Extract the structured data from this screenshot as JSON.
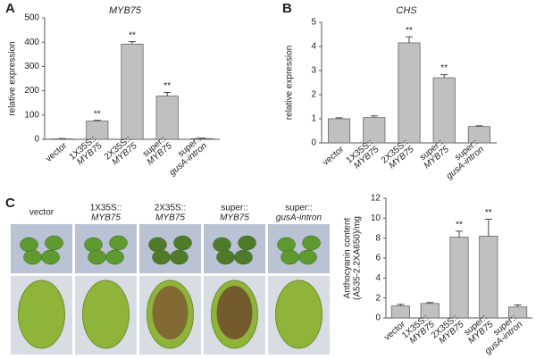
{
  "panels": [
    "A",
    "B",
    "C"
  ],
  "photo_panel": {
    "labels": [
      [
        "vector"
      ],
      [
        "1X35S::",
        "MYB75"
      ],
      [
        "2X35S::",
        "MYB75"
      ],
      [
        "super::",
        "MYB75"
      ],
      [
        "super::",
        "gusA-intron"
      ]
    ]
  },
  "chart_data": [
    {
      "type": "bar",
      "title": "MYB75",
      "y_label": [
        "relative expression"
      ],
      "categories": [
        [
          "vector"
        ],
        [
          "1X35S::",
          "MYB75"
        ],
        [
          "2X35S::",
          "MYB75"
        ],
        [
          "super::",
          "MYB75"
        ],
        [
          "super::",
          "gusA-intron"
        ]
      ],
      "values": [
        2,
        75,
        392,
        178,
        3
      ],
      "errors": [
        1,
        3,
        10,
        15,
        2
      ],
      "significance": [
        null,
        "**",
        "**",
        "**",
        null
      ],
      "color": "#c0c0c0",
      "ylim": [
        0,
        500
      ],
      "yticks": [
        0,
        100,
        200,
        300,
        400,
        500
      ]
    },
    {
      "type": "bar",
      "title": "CHS",
      "y_label": [
        "relative expression"
      ],
      "categories": [
        [
          "vector"
        ],
        [
          "1X35S::",
          "MYB75"
        ],
        [
          "2X35S::",
          "MYB75"
        ],
        [
          "super::",
          "MYB75"
        ],
        [
          "super::",
          "gusA-intron"
        ]
      ],
      "values": [
        1.0,
        1.05,
        4.15,
        2.7,
        0.68
      ],
      "errors": [
        0.04,
        0.07,
        0.25,
        0.13,
        0.03
      ],
      "significance": [
        null,
        null,
        "**",
        "**",
        null
      ],
      "color": "#c0c0c0",
      "ylim": [
        0,
        5
      ],
      "yticks": [
        0,
        1,
        2,
        3,
        4,
        5
      ]
    },
    {
      "type": "bar",
      "y_label": [
        "Anthocyanin content",
        "(A535-2.2XA650)/mg"
      ],
      "categories": [
        [
          "vector"
        ],
        [
          "1X35S::",
          "MYB75"
        ],
        [
          "2X35S::",
          "MYB75"
        ],
        [
          "super::",
          "MYB75"
        ],
        [
          "super::",
          "gusA-intron"
        ]
      ],
      "values": [
        1.2,
        1.45,
        8.1,
        8.2,
        1.1
      ],
      "errors": [
        0.15,
        0.1,
        0.6,
        1.7,
        0.2
      ],
      "significance": [
        null,
        null,
        "**",
        "**",
        null
      ],
      "color": "#c0c0c0",
      "ylim": [
        0,
        12
      ],
      "yticks": [
        0,
        2,
        4,
        6,
        8,
        10,
        12
      ]
    }
  ]
}
